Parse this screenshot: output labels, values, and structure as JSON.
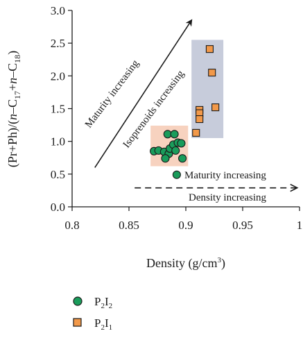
{
  "chart_data": {
    "type": "scatter",
    "xlim": [
      0.8,
      1.0
    ],
    "ylim": [
      0.0,
      3.0
    ],
    "x_ticks": [
      0.8,
      0.85,
      0.9,
      0.95,
      1.0
    ],
    "x_tick_labels": [
      "0.8",
      "0.85",
      "0.9",
      "0.95",
      "1"
    ],
    "y_ticks": [
      0.0,
      0.5,
      1.0,
      1.5,
      2.0,
      2.5,
      3.0
    ],
    "y_tick_labels": [
      "0.0",
      "0.5",
      "1.0",
      "1.5",
      "2.0",
      "2.5",
      "3.0"
    ],
    "xlabel": "Density (g/cm3)",
    "xlabel_parts": {
      "main": "Density (g/cm",
      "sup": "3",
      "close": ")"
    },
    "ylabel": "(Pr+Ph)/(n-C17+n-C18)",
    "ylabel_parts": {
      "a": "(Pr+Ph)/(",
      "n1": "n",
      "b": "–C",
      "s1": "17",
      "c": "+",
      "n2": "n",
      "d": "–C",
      "s2": "18",
      "e": ")"
    },
    "grid": false,
    "legend_position": "bottom-left",
    "series": [
      {
        "name": "P2I2",
        "label_parts": {
          "p": "P",
          "s1": "2",
          "i": "I",
          "s2": "2"
        },
        "marker": "circle",
        "color": "#1a9c5b",
        "edge_color": "#1a1a1a",
        "points": [
          [
            0.872,
            0.85
          ],
          [
            0.876,
            0.86
          ],
          [
            0.881,
            0.84
          ],
          [
            0.885,
            0.81
          ],
          [
            0.882,
            0.74
          ],
          [
            0.886,
            0.89
          ],
          [
            0.889,
            0.95
          ],
          [
            0.891,
            0.86
          ],
          [
            0.893,
            0.98
          ],
          [
            0.896,
            0.97
          ],
          [
            0.897,
            0.74
          ],
          [
            0.884,
            1.11
          ],
          [
            0.89,
            1.11
          ],
          [
            0.892,
            0.49
          ]
        ]
      },
      {
        "name": "P2I1",
        "label_parts": {
          "p": "P",
          "s1": "2",
          "i": "I",
          "s2": "1"
        },
        "marker": "square",
        "color": "#f2994a",
        "edge_color": "#1a1a1a",
        "points": [
          [
            0.921,
            2.41
          ],
          [
            0.923,
            2.05
          ],
          [
            0.926,
            1.52
          ],
          [
            0.912,
            1.48
          ],
          [
            0.912,
            1.43
          ],
          [
            0.912,
            1.34
          ],
          [
            0.909,
            1.13
          ]
        ]
      }
    ],
    "regions": [
      {
        "name": "P2I2 cluster",
        "color": "#f7d2bf",
        "x": [
          0.869,
          0.902
        ],
        "y": [
          0.62,
          1.24
        ]
      },
      {
        "name": "P2I1 cluster",
        "color": "#c7ccdb",
        "x": [
          0.905,
          0.933
        ],
        "y": [
          1.05,
          2.55
        ]
      }
    ],
    "annotations": [
      {
        "text": "Maturity increasing",
        "type": "rotated-label"
      },
      {
        "text": "Isoprenoids increasing",
        "type": "rotated-label"
      },
      {
        "text": "Maturity increasing",
        "type": "label"
      },
      {
        "text": "Density increasing",
        "type": "label"
      }
    ],
    "arrows": [
      {
        "from": [
          0.82,
          0.6
        ],
        "to": [
          0.905,
          2.85
        ],
        "style": "solid"
      },
      {
        "from": [
          0.855,
          0.29
        ],
        "to": [
          0.998,
          0.29
        ],
        "style": "dashed"
      }
    ]
  }
}
